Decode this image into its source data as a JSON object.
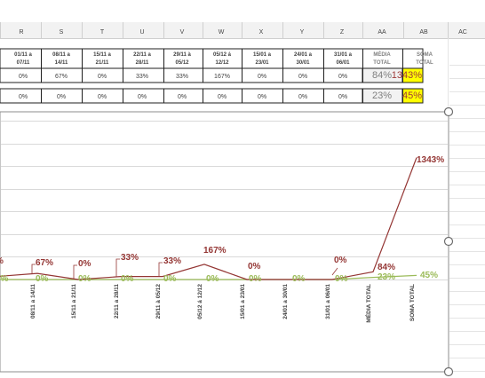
{
  "window": {
    "column_headers": [
      "R",
      "S",
      "T",
      "U",
      "V",
      "W",
      "X",
      "Y",
      "Z",
      "AA",
      "AB",
      "AC"
    ]
  },
  "table": {
    "headers": [
      [
        "01/11 a",
        "07/11"
      ],
      [
        "08/11 a",
        "14/11"
      ],
      [
        "15/11 a",
        "21/11"
      ],
      [
        "22/11 a",
        "28/11"
      ],
      [
        "29/11 à",
        "05/12"
      ],
      [
        "05/12 á",
        "12/12"
      ],
      [
        "15/01 a",
        "23/01"
      ],
      [
        "24/01 a",
        "30/01"
      ],
      [
        "31/01 a",
        "06/01"
      ],
      [
        "MÉDIA",
        "TOTAL"
      ],
      [
        "SOMA",
        "TOTAL"
      ]
    ],
    "rows": [
      [
        "0%",
        "67%",
        "0%",
        "33%",
        "33%",
        "167%",
        "0%",
        "0%",
        "0%",
        "84%",
        "1343%"
      ],
      [
        "0%",
        "0%",
        "0%",
        "0%",
        "0%",
        "0%",
        "0%",
        "0%",
        "0%",
        "23%",
        "45%"
      ]
    ],
    "highlight_color": "#ffff00"
  },
  "chart_data": {
    "type": "line",
    "categories": [
      "08/11 a 14/11",
      "15/11 a 21/11",
      "22/11 a 28/11",
      "29/11 à 05/12",
      "05/12 á 12/12",
      "15/01 a 23/01",
      "24/01 a 30/01",
      "31/01 a 06/01",
      "MÉDIA TOTAL",
      "SOMA TOTAL"
    ],
    "series": [
      {
        "color": "#943634",
        "values": [
          67,
          0,
          33,
          33,
          167,
          0,
          0,
          0,
          84,
          1343
        ],
        "labels": [
          "67%",
          "0%",
          "33%",
          "33%",
          "167%",
          "0%",
          "",
          "0%",
          "84%",
          "1343%"
        ]
      },
      {
        "color": "#9bbb59",
        "values": [
          0,
          0,
          0,
          0,
          0,
          0,
          0,
          0,
          23,
          45
        ],
        "labels": [
          "0%",
          "0%",
          "0%",
          "0%",
          "0%",
          "0%",
          "0%",
          "0%",
          "23%",
          "45%"
        ]
      }
    ],
    "left_edge_labels": [
      "%",
      "0%"
    ],
    "ylim": [
      0,
      1750
    ],
    "grid": true,
    "legend": "none"
  }
}
